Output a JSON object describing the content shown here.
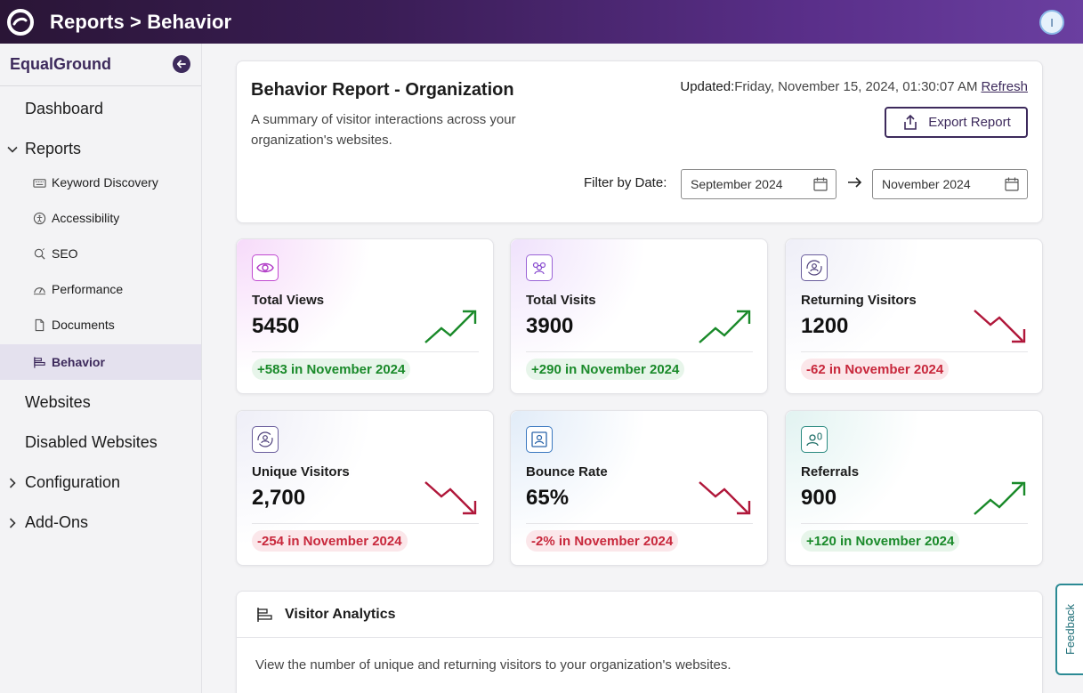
{
  "app": {
    "title": "Reports > Behavior",
    "avatar_initial": "I"
  },
  "sidebar": {
    "org_name": "EqualGround",
    "dashboard": "Dashboard",
    "reports": "Reports",
    "report_items": [
      {
        "label": "Keyword Discovery",
        "icon": "keyboard-icon"
      },
      {
        "label": "Accessibility",
        "icon": "accessibility-icon"
      },
      {
        "label": "SEO",
        "icon": "seo-search-icon"
      },
      {
        "label": "Performance",
        "icon": "gauge-icon"
      },
      {
        "label": "Documents",
        "icon": "document-icon"
      },
      {
        "label": "Behavior",
        "icon": "behavior-chart-icon",
        "active": true
      }
    ],
    "websites": "Websites",
    "disabled_websites": "Disabled Websites",
    "configuration": "Configuration",
    "addons": "Add-Ons"
  },
  "header": {
    "title": "Behavior Report - Organization",
    "description": "A summary of visitor interactions across your organization's websites.",
    "updated_label": "Updated:",
    "updated_value": "Friday, November 15, 2024, 01:30:07 AM",
    "refresh": "Refresh",
    "export": "Export Report",
    "filter_label": "Filter by Date:",
    "date_from": "September 2024",
    "date_to": "November 2024"
  },
  "stats": [
    {
      "label": "Total Views",
      "value": "5450",
      "delta": "+583 in November 2024",
      "trend": "up",
      "icon": "eye-icon"
    },
    {
      "label": "Total Visits",
      "value": "3900",
      "delta": "+290 in November 2024",
      "trend": "up",
      "icon": "users-icon"
    },
    {
      "label": "Returning Visitors",
      "value": "1200",
      "delta": "-62 in November 2024",
      "trend": "down",
      "icon": "returning-user-icon"
    },
    {
      "label": "Unique Visitors",
      "value": "2,700",
      "delta": "-254 in November 2024",
      "trend": "down",
      "icon": "unique-user-icon"
    },
    {
      "label": "Bounce Rate",
      "value": "65%",
      "delta": "-2% in November 2024",
      "trend": "down",
      "icon": "user-frame-icon"
    },
    {
      "label": "Referrals",
      "value": "900",
      "delta": "+120 in November 2024",
      "trend": "up",
      "icon": "referral-icon"
    }
  ],
  "analytics": {
    "title": "Visitor Analytics",
    "description": "View the number of unique and returning visitors to your organization's websites."
  },
  "feedback": "Feedback",
  "colors": {
    "brand": "#3d2a5c",
    "up": "#1a8a2a",
    "down": "#b0173a"
  }
}
